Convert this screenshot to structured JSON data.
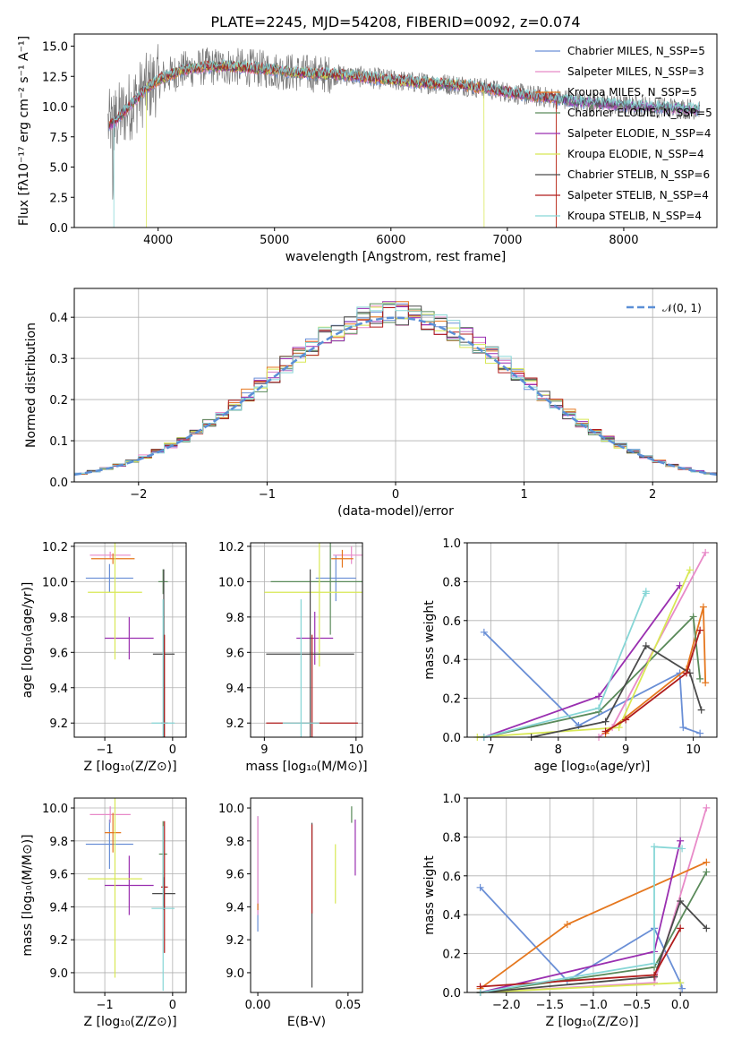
{
  "chart_data": [
    {
      "type": "line",
      "title": "PLATE=2245, MJD=54208, FIBERID=0092, z=0.074",
      "xlabel": "wavelength [Angstrom, rest frame]",
      "ylabel": "Flux [fλ10⁻¹⁷ erg cm⁻² s⁻¹ A⁻¹]",
      "xlim": [
        3280,
        8800
      ],
      "ylim": [
        0,
        16
      ],
      "xticks": [
        4000,
        5000,
        6000,
        7000,
        8000
      ],
      "yticks": [
        0.0,
        2.5,
        5.0,
        7.5,
        10.0,
        12.5,
        15.0
      ],
      "grid": false,
      "legend_position": "top-right",
      "legend": [
        "Chabrier MILES, N_SSP=5",
        "Salpeter MILES, N_SSP=3",
        "Kroupa MILES, N_SSP=5",
        "Chabrier ELODIE, N_SSP=5",
        "Salpeter ELODIE, N_SSP=4",
        "Kroupa ELODIE, N_SSP=4",
        "Chabrier STELIB, N_SSP=6",
        "Salpeter STELIB, N_SSP=4",
        "Kroupa STELIB, N_SSP=4"
      ],
      "continuum": {
        "x": [
          3600,
          3700,
          3800,
          3900,
          4000,
          4100,
          4200,
          4400,
          4600,
          4800,
          5000,
          5200,
          5400,
          5600,
          5800,
          6000,
          6200,
          6400,
          6600,
          6800,
          7000,
          7200,
          7400,
          7600,
          7800,
          8000,
          8200,
          8400,
          8600
        ],
        "y": [
          8.5,
          9.5,
          10.5,
          11.5,
          12.2,
          12.6,
          13.0,
          13.3,
          13.3,
          13.2,
          13.0,
          12.8,
          12.7,
          12.6,
          12.4,
          12.2,
          12.0,
          11.9,
          11.8,
          11.5,
          11.2,
          10.9,
          10.7,
          10.4,
          10.3,
          10.1,
          10.0,
          9.9,
          9.8
        ]
      }
    },
    {
      "type": "histogram",
      "xlabel": "(data-model)/error",
      "ylabel": "Normed distribution",
      "xlim": [
        -2.5,
        2.5
      ],
      "ylim": [
        0,
        0.47
      ],
      "xticks": [
        -2,
        -1,
        0,
        1,
        2
      ],
      "yticks": [
        0.0,
        0.1,
        0.2,
        0.3,
        0.4
      ],
      "grid": true,
      "legend_position": "top-right",
      "legend": [
        "𝒩(0, 1)"
      ],
      "reference_curve": "normal(0,1)"
    },
    {
      "type": "errorbar",
      "xlabel": "Z [log₁₀(Z/Z⊙)]",
      "ylabel": "age  [log₁₀(age/yr)]",
      "xlim": [
        -1.45,
        0.2
      ],
      "ylim": [
        9.12,
        10.22
      ],
      "xticks": [
        -1,
        0
      ],
      "yticks": [
        9.2,
        9.4,
        9.6,
        9.8,
        10.0,
        10.2
      ],
      "grid": true,
      "points": [
        {
          "x": -0.93,
          "y": 10.02,
          "xerr": 0.35,
          "yerr": 0.08
        },
        {
          "x": -0.92,
          "y": 10.15,
          "xerr": 0.3,
          "yerr": 0.02
        },
        {
          "x": -0.88,
          "y": 10.13,
          "xerr": 0.32,
          "yerr": 0.03
        },
        {
          "x": -0.14,
          "y": 10.0,
          "xerr": 0.07,
          "yerr": 0.07
        },
        {
          "x": -0.64,
          "y": 9.68,
          "xerr": 0.36,
          "yerr": 0.12
        },
        {
          "x": -0.85,
          "y": 9.94,
          "xerr": 0.4,
          "yerr": 0.38
        },
        {
          "x": -0.13,
          "y": 9.59,
          "xerr": 0.16,
          "yerr": 0.48
        },
        {
          "x": -0.12,
          "y": 9.2,
          "xerr": 0.05,
          "yerr": 0.5
        },
        {
          "x": -0.14,
          "y": 9.2,
          "xerr": 0.17,
          "yerr": 0.7
        }
      ]
    },
    {
      "type": "errorbar",
      "xlabel": "mass [log₁₀(M/M⊙)]",
      "ylabel": "",
      "xlim": [
        8.85,
        10.07
      ],
      "ylim": [
        9.12,
        10.22
      ],
      "xticks": [
        9,
        10
      ],
      "yticks": [
        9.2,
        9.4,
        9.6,
        9.8,
        10.0,
        10.2
      ],
      "grid": true,
      "points": [
        {
          "x": 9.78,
          "y": 10.02,
          "xerr": 0.22,
          "yerr": 0.13
        },
        {
          "x": 9.95,
          "y": 10.15,
          "xerr": 0.2,
          "yerr": 0.05
        },
        {
          "x": 9.85,
          "y": 10.13,
          "xerr": 0.12,
          "yerr": 0.05
        },
        {
          "x": 9.72,
          "y": 10.0,
          "xerr": 0.65,
          "yerr": 0.3
        },
        {
          "x": 9.55,
          "y": 9.68,
          "xerr": 0.2,
          "yerr": 0.15
        },
        {
          "x": 9.6,
          "y": 9.94,
          "xerr": 0.6,
          "yerr": 0.42
        },
        {
          "x": 9.5,
          "y": 9.59,
          "xerr": 0.48,
          "yerr": 0.48
        },
        {
          "x": 9.52,
          "y": 9.2,
          "xerr": 0.5,
          "yerr": 0.5
        },
        {
          "x": 9.4,
          "y": 9.2,
          "xerr": 0.2,
          "yerr": 0.7
        }
      ]
    },
    {
      "type": "line",
      "xlabel": "age  [log₁₀(age/yr)]",
      "ylabel": "mass weight",
      "xlim": [
        6.65,
        10.35
      ],
      "ylim": [
        0,
        1.0
      ],
      "xticks": [
        7,
        8,
        9,
        10
      ],
      "yticks": [
        0.0,
        0.2,
        0.4,
        0.6,
        0.8,
        1.0
      ],
      "grid": true
    },
    {
      "type": "errorbar",
      "xlabel": "Z [log₁₀(Z/Z⊙)]",
      "ylabel": "mass [log₁₀(M/M⊙)]",
      "xlim": [
        -1.45,
        0.2
      ],
      "ylim": [
        8.88,
        10.06
      ],
      "xticks": [
        -1,
        0
      ],
      "yticks": [
        9.0,
        9.2,
        9.4,
        9.6,
        9.8,
        10.0
      ],
      "grid": true,
      "points": [
        {
          "x": -0.93,
          "y": 9.78,
          "xerr": 0.35,
          "yerr": 0.15
        },
        {
          "x": -0.92,
          "y": 9.96,
          "xerr": 0.3,
          "yerr": 0.05
        },
        {
          "x": -0.88,
          "y": 9.85,
          "xerr": 0.12,
          "yerr": 0.12
        },
        {
          "x": -0.14,
          "y": 9.72,
          "xerr": 0.06,
          "yerr": 0.2
        },
        {
          "x": -0.64,
          "y": 9.53,
          "xerr": 0.36,
          "yerr": 0.18
        },
        {
          "x": -0.85,
          "y": 9.57,
          "xerr": 0.4,
          "yerr": 0.6
        },
        {
          "x": -0.13,
          "y": 9.48,
          "xerr": 0.17,
          "yerr": 0.1
        },
        {
          "x": -0.12,
          "y": 9.52,
          "xerr": 0.05,
          "yerr": 0.4
        },
        {
          "x": -0.14,
          "y": 9.39,
          "xerr": 0.17,
          "yerr": 0.5
        }
      ]
    },
    {
      "type": "errorbar",
      "xlabel": "E(B-V)",
      "ylabel": "",
      "xlim": [
        -0.004,
        0.058
      ],
      "ylim": [
        8.88,
        10.06
      ],
      "xticks": [
        0.0,
        0.05
      ],
      "yticks": [
        9.0,
        9.2,
        9.4,
        9.6,
        9.8,
        10.0
      ],
      "grid": false,
      "points": [
        {
          "x": 0.0,
          "y": 9.6,
          "xerr": 0,
          "yerr": 0.35
        },
        {
          "x": 0.0,
          "y": 9.65,
          "xerr": 0,
          "yerr": 0.3
        },
        {
          "x": 0.0,
          "y": 9.4,
          "xerr": 0,
          "yerr": 0.02
        },
        {
          "x": 0.052,
          "y": 9.96,
          "xerr": 0,
          "yerr": 0.05
        },
        {
          "x": 0.054,
          "y": 9.76,
          "xerr": 0,
          "yerr": 0.17
        },
        {
          "x": 0.043,
          "y": 9.6,
          "xerr": 0,
          "yerr": 0.18
        },
        {
          "x": 0.03,
          "y": 9.41,
          "xerr": 0,
          "yerr": 0.5
        },
        {
          "x": 0.03,
          "y": 9.63,
          "xerr": 0,
          "yerr": 0.27
        }
      ]
    },
    {
      "type": "line",
      "xlabel": "Z [log₁₀(Z/Z⊙)]",
      "ylabel": "mass weight",
      "xlim": [
        -2.45,
        0.42
      ],
      "ylim": [
        0,
        1.0
      ],
      "xticks": [
        -2.0,
        -1.5,
        -1.0,
        -0.5,
        0.0
      ],
      "yticks": [
        0.0,
        0.2,
        0.4,
        0.6,
        0.8,
        1.0
      ],
      "grid": true
    }
  ],
  "colors": {
    "series": [
      "#6a8fd6",
      "#e88ac8",
      "#e5771e",
      "#5a8a5a",
      "#9a2fb0",
      "#d8e855",
      "#4a4a4a",
      "#b01c1c",
      "#86d6d6"
    ],
    "spectrum": "#777777",
    "normal_curve": "#5b8fd6"
  },
  "series_weights": [
    {
      "age": [
        6.9,
        8.3,
        9.8,
        9.85,
        10.1
      ],
      "Z": [
        -2.3,
        -1.3,
        -0.3,
        0.0,
        0.02
      ],
      "w": [
        0.54,
        0.06,
        0.33,
        0.05,
        0.02
      ]
    },
    {
      "age": [
        8.6,
        8.8,
        10.18
      ],
      "Z": [
        -2.3,
        -0.3,
        0.3
      ],
      "w": [
        0.0,
        0.05,
        0.95
      ]
    },
    {
      "age": [
        8.7,
        9.9,
        10.15,
        10.18
      ],
      "Z": [
        -2.3,
        -1.3,
        0.3
      ],
      "w": [
        0.02,
        0.35,
        0.67,
        0.28
      ]
    },
    {
      "age": [
        6.9,
        8.6,
        10.0,
        10.1
      ],
      "Z": [
        -2.3,
        -0.3,
        0.3
      ],
      "w": [
        0.0,
        0.13,
        0.62,
        0.3
      ]
    },
    {
      "age": [
        6.9,
        8.6,
        9.8
      ],
      "Z": [
        -2.3,
        -0.3,
        0.0
      ],
      "w": [
        0.0,
        0.21,
        0.78
      ]
    },
    {
      "age": [
        6.8,
        8.9,
        9.95
      ],
      "Z": [
        -2.3,
        0.0
      ],
      "w": [
        0.0,
        0.05,
        0.86
      ]
    },
    {
      "age": [
        7.6,
        8.7,
        9.3,
        9.95,
        10.12
      ],
      "Z": [
        -2.3,
        -0.3,
        0.0,
        0.3
      ],
      "w": [
        0.0,
        0.08,
        0.47,
        0.33,
        0.14
      ]
    },
    {
      "age": [
        8.7,
        9.0,
        9.9,
        10.1
      ],
      "Z": [
        -2.3,
        -0.3,
        0.0
      ],
      "w": [
        0.03,
        0.09,
        0.33,
        0.55
      ]
    },
    {
      "age": [
        6.9,
        8.6,
        9.3,
        9.3
      ],
      "Z": [
        -2.3,
        -0.3,
        -0.3,
        0.02
      ],
      "w": [
        0.0,
        0.15,
        0.75,
        0.74
      ]
    }
  ]
}
